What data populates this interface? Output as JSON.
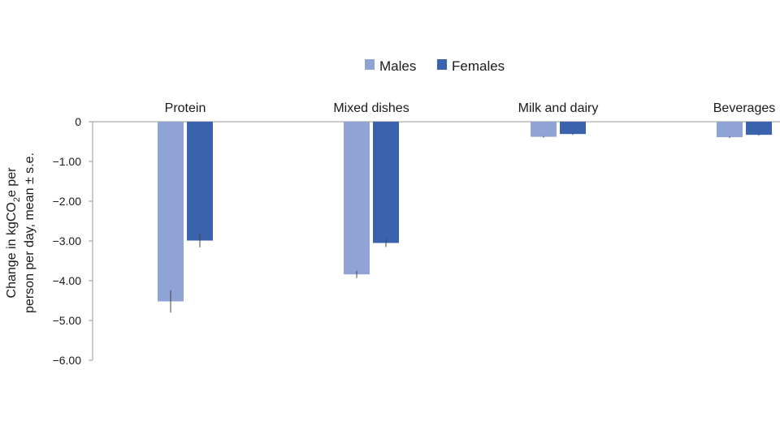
{
  "chart_data": {
    "type": "bar",
    "title": "",
    "xlabel": "",
    "ylabel": {
      "line1_pre": "Change in kgCO",
      "line1_sub": "2",
      "line1_post": "e per",
      "line2": "person per day, mean ± s.e."
    },
    "categories": [
      "Protein",
      "Mixed dishes",
      "Milk and dairy",
      "Beverages"
    ],
    "series": [
      {
        "name": "Males",
        "color": "#8fa3d4",
        "values": [
          -4.52,
          -3.84,
          -0.38,
          -0.39
        ],
        "se": [
          0.28,
          0.09,
          0.02,
          0.02
        ]
      },
      {
        "name": "Females",
        "color": "#3a62ad",
        "values": [
          -2.99,
          -3.05,
          -0.31,
          -0.33
        ],
        "se": [
          0.17,
          0.1,
          0.02,
          0.02
        ]
      }
    ],
    "ylim": [
      -6.0,
      0
    ],
    "yticks": [
      0,
      -1.0,
      -2.0,
      -3.0,
      -4.0,
      -5.0,
      -6.0
    ],
    "ytick_labels": [
      "0",
      "−1.00",
      "−2.00",
      "−3.00",
      "−4.00",
      "−5.00",
      "−6.00"
    ],
    "grid": false,
    "legend_position": "top-center"
  }
}
